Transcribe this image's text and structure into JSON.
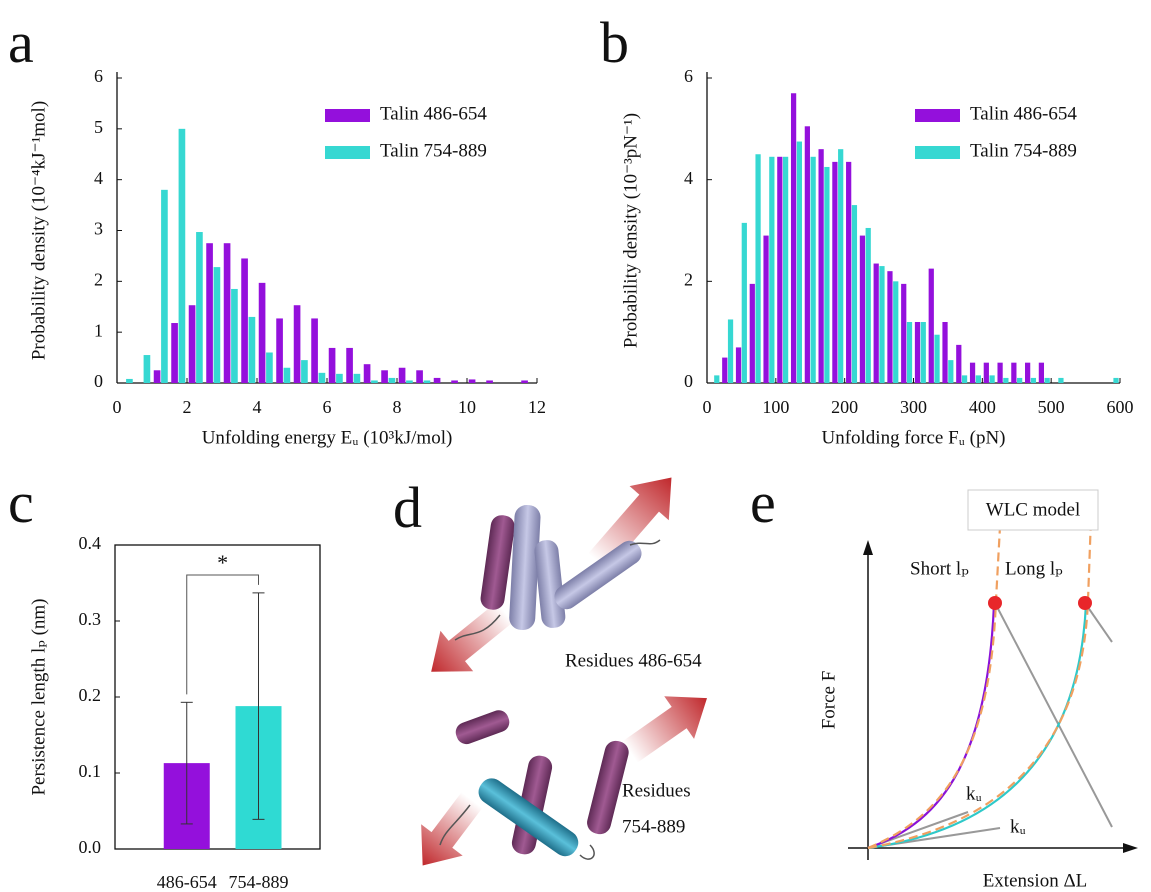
{
  "panel_labels": [
    "a",
    "b",
    "c",
    "d",
    "e"
  ],
  "chart_data": [
    {
      "type": "histogram",
      "xlabel": "Unfolding energy Eᵤ (10³kJ/mol)",
      "ylabel": "Probability density (10⁻⁴kJ⁻¹mol)",
      "bins": [
        0,
        0.5,
        1,
        1.5,
        2,
        2.5,
        3,
        3.5,
        4,
        4.5,
        5,
        5.5,
        6,
        6.5,
        7,
        7.5,
        8,
        8.5,
        9,
        9.5,
        10,
        10.5,
        11,
        11.5,
        12
      ],
      "series": [
        {
          "name": "Talin 486-654",
          "color": "#9410dc",
          "values": [
            0,
            0,
            0.25,
            1.18,
            1.53,
            2.75,
            2.75,
            2.45,
            1.97,
            1.27,
            1.53,
            1.27,
            0.69,
            0.69,
            0.37,
            0.25,
            0.3,
            0.25,
            0.1,
            0.05,
            0.07,
            0.05,
            0,
            0.05
          ]
        },
        {
          "name": "Talin 754-889",
          "color": "#36d8d2",
          "values": [
            0.08,
            0.55,
            3.8,
            5.0,
            2.97,
            2.28,
            1.85,
            1.3,
            0.6,
            0.3,
            0.45,
            0.2,
            0.18,
            0.18,
            0.05,
            0.1,
            0.05,
            0.05,
            0,
            0,
            0,
            0,
            0,
            0
          ]
        }
      ],
      "xlim": [
        0,
        12
      ],
      "xticks": [
        0,
        2,
        4,
        6,
        8,
        10,
        12
      ],
      "ylim": [
        0,
        6
      ],
      "yticks": [
        0,
        1,
        2,
        3,
        4,
        5,
        6
      ],
      "legend": "upper right"
    },
    {
      "type": "histogram",
      "xlabel": "Unfolding force Fᵤ (pN)",
      "ylabel": "Probability density (10⁻³pN⁻¹)",
      "bins": [
        0,
        20,
        40,
        60,
        80,
        100,
        120,
        140,
        160,
        180,
        200,
        220,
        240,
        260,
        280,
        300,
        320,
        340,
        360,
        380,
        400,
        420,
        440,
        460,
        480,
        500,
        520,
        540,
        560,
        580,
        600
      ],
      "series": [
        {
          "name": "Talin 486-654",
          "color": "#9410dc",
          "values": [
            0,
            0.5,
            0.7,
            1.95,
            2.9,
            4.45,
            5.7,
            5.05,
            4.6,
            4.35,
            4.35,
            2.9,
            2.35,
            2.2,
            1.95,
            1.2,
            2.25,
            1.2,
            0.75,
            0.4,
            0.4,
            0.4,
            0.4,
            0.4,
            0.4,
            0,
            0,
            0,
            0,
            0
          ]
        },
        {
          "name": "Talin 754-889",
          "color": "#36d8d2",
          "values": [
            0.15,
            1.25,
            3.15,
            4.5,
            4.45,
            4.45,
            4.75,
            4.45,
            4.25,
            4.6,
            3.5,
            3.05,
            2.3,
            2.0,
            1.2,
            1.2,
            0.95,
            0.45,
            0.15,
            0.15,
            0.15,
            0.1,
            0.1,
            0.1,
            0.1,
            0.1,
            0,
            0,
            0,
            0.1
          ]
        }
      ],
      "xlim": [
        0,
        600
      ],
      "xticks": [
        0,
        100,
        200,
        300,
        400,
        500,
        600
      ],
      "ylim": [
        0,
        6
      ],
      "yticks": [
        0,
        2,
        4,
        6
      ],
      "legend": "upper right"
    },
    {
      "type": "bar",
      "ylabel": "Persistence length lₚ (nm)",
      "categories": [
        "486-654",
        "754-889"
      ],
      "values": [
        0.113,
        0.188
      ],
      "errors": [
        0.08,
        0.149
      ],
      "colors": [
        "#9410dc",
        "#2fdad3"
      ],
      "ylim": [
        0,
        0.4
      ],
      "yticks": [
        {
          "value": 0,
          "label": "0.0"
        },
        0.1,
        0.2,
        0.3,
        0.4
      ],
      "annotation": "*"
    }
  ],
  "diagram_d": {
    "label_top": "Residues 486-654",
    "label_bottom": [
      "Residues",
      "754-889"
    ]
  },
  "diagram_e": {
    "legend": "WLC model",
    "short": "Short lₚ",
    "long": "Long lₚ",
    "y_axis": "Force F",
    "x_axis": "Extension ΔL",
    "k_label_1": "kᵤ",
    "k_label_2": "kᵤ"
  }
}
